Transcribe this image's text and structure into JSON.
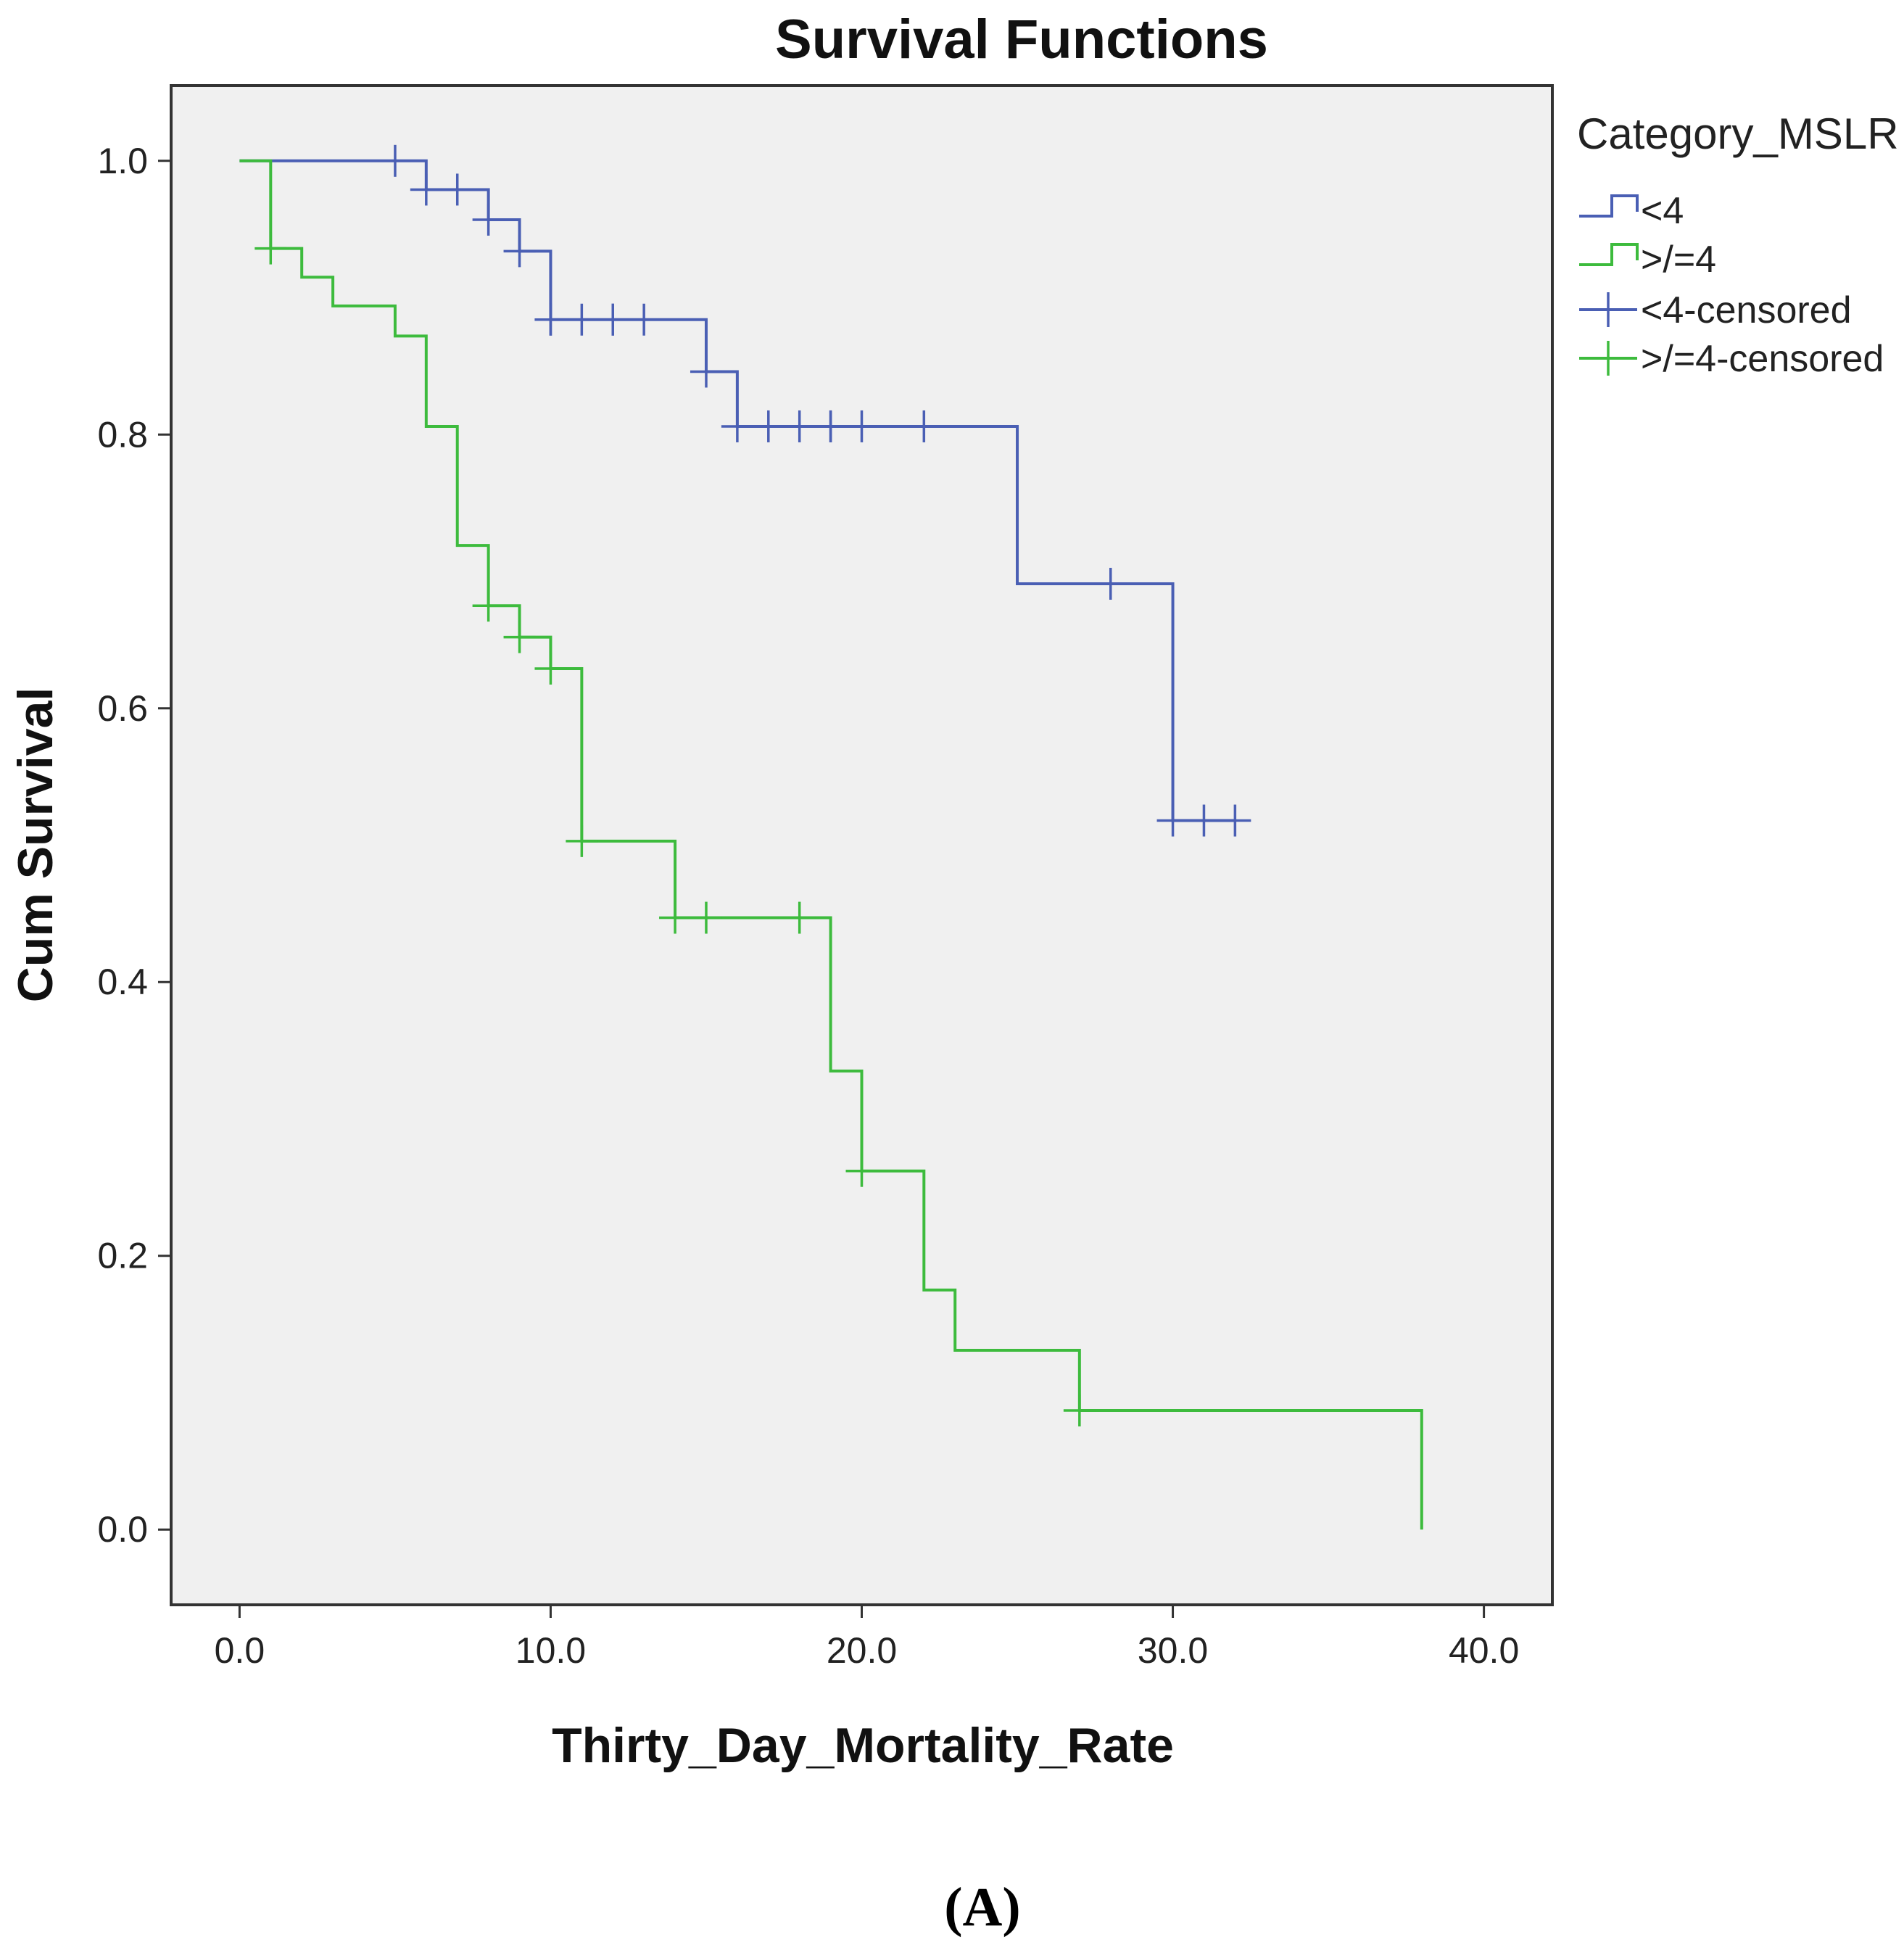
{
  "chart_data": {
    "type": "line",
    "subtype": "kaplan-meier-step",
    "title": "Survival Functions",
    "xlabel": "Thirty_Day_Mortality_Rate",
    "ylabel": "Cum Survival",
    "xlim": [
      -2.2,
      42.2
    ],
    "ylim": [
      -0.055,
      1.055
    ],
    "x_ticks": [
      0,
      10,
      20,
      30,
      40
    ],
    "x_tick_labels": [
      "0.0",
      "10.0",
      "20.0",
      "30.0",
      "40.0"
    ],
    "y_ticks": [
      0,
      0.2,
      0.4,
      0.6,
      0.8,
      1.0
    ],
    "y_tick_labels": [
      "0.0",
      "0.2",
      "0.4",
      "0.6",
      "0.8",
      "1.0"
    ],
    "legend_title": "Category_MSLR",
    "legend_position": "right",
    "panel_label": "(A)",
    "series": [
      {
        "name": "<4",
        "censored_name": "<4-censored",
        "color": "#4a5fb4",
        "steps": [
          [
            0,
            1.0
          ],
          [
            6,
            0.979
          ],
          [
            8,
            0.957
          ],
          [
            9,
            0.934
          ],
          [
            10,
            0.884
          ],
          [
            15,
            0.846
          ],
          [
            16,
            0.806
          ],
          [
            25,
            0.691
          ],
          [
            30,
            0.518
          ],
          [
            32,
            0.518
          ]
        ],
        "censored": [
          [
            5,
            1.0
          ],
          [
            6,
            0.979
          ],
          [
            7,
            0.979
          ],
          [
            8,
            0.957
          ],
          [
            9,
            0.934
          ],
          [
            10,
            0.884
          ],
          [
            10,
            0.884
          ],
          [
            11,
            0.884
          ],
          [
            12,
            0.884
          ],
          [
            12,
            0.884
          ],
          [
            13,
            0.884
          ],
          [
            15,
            0.846
          ],
          [
            16,
            0.806
          ],
          [
            17,
            0.806
          ],
          [
            18,
            0.806
          ],
          [
            19,
            0.806
          ],
          [
            19,
            0.806
          ],
          [
            20,
            0.806
          ],
          [
            22,
            0.806
          ],
          [
            28,
            0.691
          ],
          [
            30,
            0.518
          ],
          [
            31,
            0.518
          ],
          [
            32,
            0.518
          ]
        ]
      },
      {
        "name": ">/=4",
        "censored_name": ">/=4-censored",
        "color": "#3dbb3d",
        "steps": [
          [
            0,
            1.0
          ],
          [
            1,
            0.936
          ],
          [
            2,
            0.915
          ],
          [
            3,
            0.894
          ],
          [
            5,
            0.872
          ],
          [
            6,
            0.806
          ],
          [
            7,
            0.719
          ],
          [
            8,
            0.675
          ],
          [
            9,
            0.652
          ],
          [
            10,
            0.629
          ],
          [
            11,
            0.503
          ],
          [
            14,
            0.447
          ],
          [
            19,
            0.335
          ],
          [
            20,
            0.262
          ],
          [
            22,
            0.175
          ],
          [
            23,
            0.131
          ],
          [
            27,
            0.087
          ],
          [
            38,
            0.0
          ]
        ],
        "censored": [
          [
            1,
            0.936
          ],
          [
            8,
            0.675
          ],
          [
            9,
            0.652
          ],
          [
            10,
            0.629
          ],
          [
            11,
            0.503
          ],
          [
            14,
            0.447
          ],
          [
            15,
            0.447
          ],
          [
            18,
            0.447
          ],
          [
            20,
            0.262
          ],
          [
            27,
            0.087
          ]
        ]
      }
    ]
  }
}
